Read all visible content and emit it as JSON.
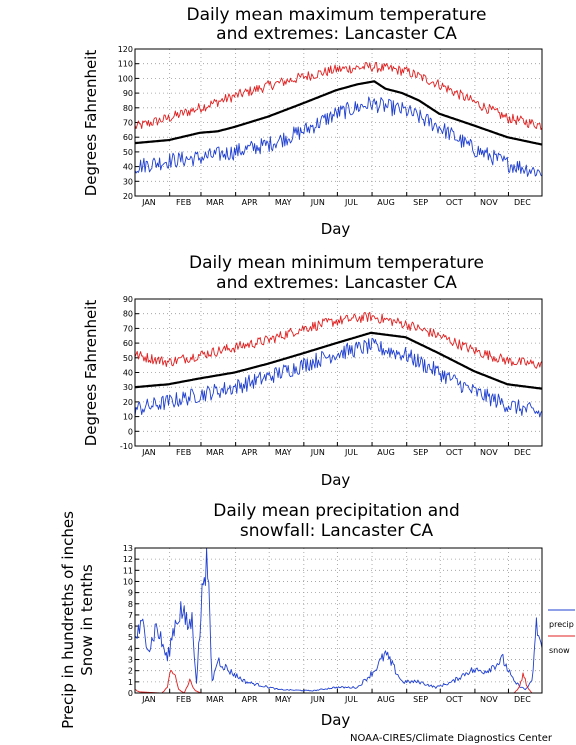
{
  "credit": "NOAA-CIRES/Climate Diagnostics Center",
  "chart_data": [
    {
      "type": "line",
      "title_lines": [
        "Daily mean maximum temperature",
        "and extremes: Lancaster CA"
      ],
      "xlabel": "Day",
      "ylabel_lines": [
        "Degrees Fahrenheit"
      ],
      "months": [
        "JAN",
        "FEB",
        "MAR",
        "APR",
        "MAY",
        "JUN",
        "JUL",
        "AUG",
        "SEP",
        "OCT",
        "NOV",
        "DEC"
      ],
      "ylim": [
        20,
        120
      ],
      "yticks": [
        "20",
        "30",
        "40",
        "50",
        "60",
        "70",
        "80",
        "90",
        "100",
        "110",
        "120"
      ],
      "grid": true,
      "series": [
        {
          "role": "record_high",
          "color": "#e02020",
          "x": [
            1,
            31,
            59,
            90,
            120,
            151,
            181,
            212,
            243,
            273,
            304,
            334,
            365
          ],
          "y": [
            67,
            73,
            80,
            88,
            95,
            101,
            106,
            108,
            105,
            96,
            84,
            73,
            68
          ]
        },
        {
          "role": "mean",
          "color": "#000000",
          "x": [
            1,
            31,
            59,
            75,
            90,
            120,
            151,
            181,
            200,
            215,
            225,
            240,
            255,
            273,
            304,
            334,
            365
          ],
          "y": [
            56,
            58,
            63,
            64,
            67,
            74,
            83,
            92,
            96,
            98,
            93,
            90,
            85,
            76,
            68,
            60,
            55
          ]
        },
        {
          "role": "record_low",
          "color": "#2040d0",
          "x": [
            1,
            31,
            59,
            90,
            120,
            151,
            181,
            212,
            243,
            273,
            304,
            334,
            365
          ],
          "y": [
            40,
            44,
            46,
            50,
            55,
            64,
            76,
            83,
            78,
            67,
            52,
            42,
            36
          ]
        }
      ]
    },
    {
      "type": "line",
      "title_lines": [
        "Daily mean minimum temperature",
        "and extremes: Lancaster CA"
      ],
      "xlabel": "Day",
      "ylabel_lines": [
        "Degrees Fahrenheit"
      ],
      "months": [
        "JAN",
        "FEB",
        "MAR",
        "APR",
        "MAY",
        "JUN",
        "JUL",
        "AUG",
        "SEP",
        "OCT",
        "NOV",
        "DEC"
      ],
      "ylim": [
        -10,
        90
      ],
      "yticks": [
        "-10",
        "0",
        "10",
        "20",
        "30",
        "40",
        "50",
        "60",
        "70",
        "80",
        "90"
      ],
      "grid": true,
      "series": [
        {
          "role": "record_high",
          "color": "#e02020",
          "x": [
            1,
            31,
            59,
            90,
            120,
            151,
            181,
            212,
            243,
            273,
            304,
            334,
            365
          ],
          "y": [
            52,
            47,
            52,
            57,
            62,
            70,
            75,
            78,
            73,
            65,
            55,
            48,
            45
          ]
        },
        {
          "role": "mean",
          "color": "#000000",
          "x": [
            1,
            31,
            59,
            90,
            120,
            151,
            181,
            212,
            243,
            273,
            304,
            334,
            365
          ],
          "y": [
            30,
            32,
            36,
            40,
            46,
            53,
            60,
            67,
            64,
            53,
            41,
            32,
            29
          ]
        },
        {
          "role": "record_low",
          "color": "#2040d0",
          "x": [
            1,
            31,
            59,
            90,
            120,
            151,
            181,
            212,
            243,
            273,
            304,
            334,
            365
          ],
          "y": [
            15,
            20,
            25,
            30,
            37,
            45,
            53,
            58,
            52,
            40,
            27,
            18,
            12
          ]
        }
      ]
    },
    {
      "type": "line",
      "title_lines": [
        "Daily mean precipitation and",
        "snowfall: Lancaster CA"
      ],
      "xlabel": "Day",
      "ylabel_lines": [
        "Precip in hundreths of inches",
        "Snow in tenths"
      ],
      "months": [
        "JAN",
        "FEB",
        "MAR",
        "APR",
        "MAY",
        "JUN",
        "JUL",
        "AUG",
        "SEP",
        "OCT",
        "NOV",
        "DEC"
      ],
      "ylim": [
        0,
        13
      ],
      "yticks": [
        "0",
        "1",
        "2",
        "3",
        "4",
        "5",
        "6",
        "7",
        "8",
        "9",
        "10",
        "11",
        "12",
        "13"
      ],
      "grid": true,
      "legend_position": "right",
      "series": [
        {
          "name": "precip",
          "color": "#2040d0",
          "x": [
            1,
            8,
            14,
            20,
            30,
            36,
            42,
            48,
            52,
            56,
            60,
            63,
            66,
            70,
            75,
            85,
            100,
            130,
            160,
            180,
            200,
            215,
            225,
            240,
            255,
            270,
            285,
            300,
            315,
            330,
            340,
            350,
            356,
            360,
            365
          ],
          "y": [
            5,
            6,
            4,
            6,
            3,
            6,
            7.5,
            6,
            6.5,
            1,
            7,
            12,
            11,
            1,
            3,
            2,
            1,
            0.3,
            0.2,
            0.5,
            0.5,
            2,
            3.5,
            1,
            1,
            0.5,
            1,
            2,
            2,
            3,
            1,
            0.3,
            1,
            6,
            4
          ]
        },
        {
          "name": "snow",
          "color": "#e02020",
          "x": [
            1,
            5,
            25,
            30,
            33,
            36,
            40,
            45,
            50,
            55,
            60,
            70,
            300,
            340,
            345,
            348,
            352,
            356,
            365
          ],
          "y": [
            0.3,
            0.1,
            0,
            0.5,
            2.3,
            1.8,
            0.3,
            0,
            1.1,
            0.2,
            0,
            0,
            0,
            0,
            0.5,
            1.8,
            0.5,
            0,
            0
          ]
        }
      ]
    }
  ]
}
